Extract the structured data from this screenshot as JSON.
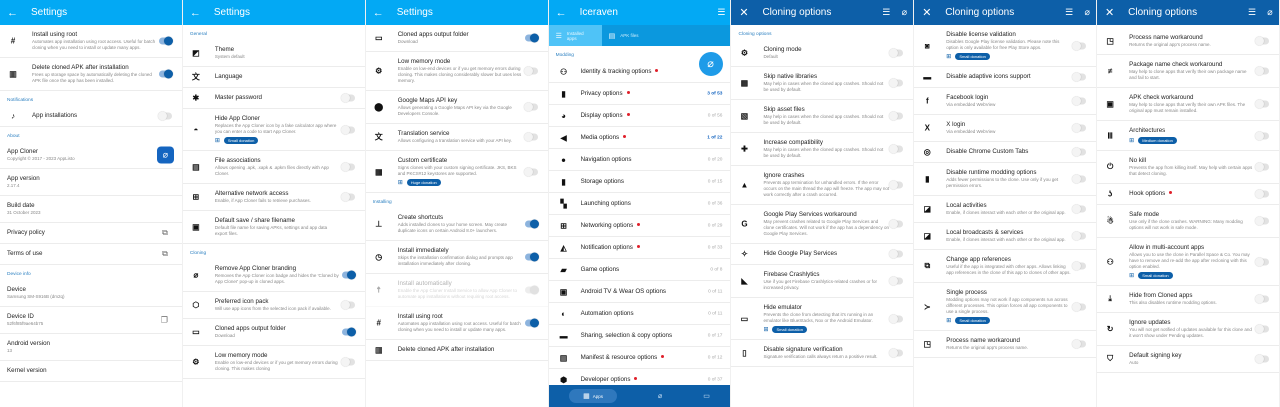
{
  "colors": {
    "header_light": "#03a9f4",
    "header_dark": "#0d5fa8",
    "accent": "#0d5fa8",
    "dot": "#e0202a"
  },
  "panels": [
    {
      "title": "Settings",
      "nav_icon": "back-arrow-icon",
      "theme": "light",
      "actions": [],
      "items": [
        {
          "icon": "hash-icon",
          "title": "Install using root",
          "subtitle": "Automates app installation using root access. Useful for batch cloning when you need to install or update many apps.",
          "toggle": "on"
        },
        {
          "icon": "trash-icon",
          "title": "Delete cloned APK after installation",
          "subtitle": "Frees up storage space by automatically deleting the cloned APK file once the app has been installed.",
          "toggle": "on"
        },
        {
          "section": "Notifications"
        },
        {
          "icon": "bell-icon",
          "title": "App installations",
          "toggle": "off",
          "plain": true
        },
        {
          "section": "About"
        },
        {
          "title": "App Cloner",
          "subtitle": "Copyright © 2017 - 2023 AppListo",
          "trailing": "app-logo"
        },
        {
          "title": "App version",
          "subtitle": "2.17.4"
        },
        {
          "title": "Build date",
          "subtitle": "31 October 2023"
        },
        {
          "title": "Privacy policy",
          "trailing": "open-external"
        },
        {
          "title": "Terms of use",
          "trailing": "open-external"
        },
        {
          "section": "Device info"
        },
        {
          "title": "Device",
          "subtitle": "Samsung SM-S916B (dm2q)"
        },
        {
          "title": "Device ID",
          "subtitle": "52f6f85f9ae64b75",
          "trailing": "copy"
        },
        {
          "title": "Android version",
          "subtitle": "13"
        },
        {
          "title": "Kernel version"
        }
      ]
    },
    {
      "title": "Settings",
      "nav_icon": "back-arrow-icon",
      "theme": "light",
      "actions": [],
      "items": [
        {
          "section": "General"
        },
        {
          "icon": "theme-icon",
          "title": "Theme",
          "subtitle": "System default"
        },
        {
          "icon": "translate-icon",
          "title": "Language"
        },
        {
          "icon": "asterisk-icon",
          "title": "Master password",
          "toggle": "off"
        },
        {
          "icon": "incognito-icon",
          "title": "Hide App Cloner",
          "subtitle": "Replaces the App Cloner icon by a fake calculator app where you can enter a code to start App Cloner.",
          "badge": "Small donation",
          "toggle": "off"
        },
        {
          "icon": "file-icon",
          "title": "File associations",
          "subtitle": "Allows opening .apk, .xapk & .apkm files directly with App Cloner.",
          "toggle": "off"
        },
        {
          "icon": "network-icon",
          "title": "Alternative network access",
          "subtitle": "Enable, if App Cloner fails to retrieve purchases.",
          "toggle": "off"
        },
        {
          "icon": "save-icon",
          "title": "Default save / share filename",
          "subtitle": "Default file name for saving APKs, settings and app data export files."
        },
        {
          "section": "Cloning"
        },
        {
          "icon": "branding-icon",
          "title": "Remove App Cloner branding",
          "subtitle": "Removes the App Cloner icon badge and hides the 'Cloned by App Cloner' pop-up in cloned apps.",
          "toggle": "on"
        },
        {
          "icon": "icon-pack-icon",
          "title": "Preferred icon pack",
          "subtitle": "Will use app icons from the selected icon pack if available.",
          "toggle": "off"
        },
        {
          "icon": "folder-icon",
          "title": "Cloned apps output folder",
          "subtitle": "Download",
          "toggle": "on"
        },
        {
          "icon": "memory-icon",
          "title": "Low memory mode",
          "subtitle": "Enable on low-end devices or if you get memory errors during cloning. This makes cloning",
          "toggle": "off"
        }
      ]
    },
    {
      "title": "Settings",
      "nav_icon": "back-arrow-icon",
      "theme": "light",
      "actions": [],
      "items": [
        {
          "icon": "folder-icon",
          "title": "Cloned apps output folder",
          "subtitle": "Download",
          "toggle": "on"
        },
        {
          "icon": "memory-icon",
          "title": "Low memory mode",
          "subtitle": "Enable on low-end devices or if you get memory errors during cloning. This makes cloning considerably slower but uses less memory.",
          "toggle": "off"
        },
        {
          "icon": "map-pin-icon",
          "title": "Google Maps API key",
          "subtitle": "Allows generating a Google Maps API key via the Google Developers Console.",
          "toggle": "off"
        },
        {
          "icon": "translate-icon",
          "title": "Translation service",
          "subtitle": "Allows configuring a translation service with your API key.",
          "toggle": "off"
        },
        {
          "icon": "certificate-icon",
          "title": "Custom certificate",
          "subtitle": "Signs clones with your custom signing certificate. JKS, BKS and PKCS#12 keystores are supported.",
          "badge": "Huge donation",
          "toggle": "off"
        },
        {
          "section": "Installing"
        },
        {
          "icon": "pin-icon",
          "title": "Create shortcuts",
          "subtitle": "Adds installed clones to your home screen. May create duplicate icons on certain Android 8.0+ launchers.",
          "toggle": "on"
        },
        {
          "icon": "timer-icon",
          "title": "Install immediately",
          "subtitle": "Skips the installation confirmation dialog and prompts app installation immediately after cloning.",
          "toggle": "on"
        },
        {
          "icon": "accessibility-icon",
          "title": "Install automatically",
          "subtitle": "Enable the App Cloner Install Service to allow App Cloner to automate app installations without requiring root access.",
          "toggle": "disabled",
          "disabled": true
        },
        {
          "icon": "hash-icon",
          "title": "Install using root",
          "subtitle": "Automates app installation using root access. Useful for batch cloning when you need to install or update many apps.",
          "toggle": "on"
        },
        {
          "icon": "trash-icon",
          "title": "Delete cloned APK after installation"
        }
      ]
    },
    {
      "title": "Iceraven",
      "nav_icon": "back-arrow-icon",
      "theme": "light",
      "actions": [
        "filter-search-icon"
      ],
      "tabs": [
        {
          "label": "Installed apps",
          "icon": "list-icon",
          "selected": true
        },
        {
          "label": "APK files",
          "icon": "file-icon",
          "selected": false
        }
      ],
      "fab_icon": "clone-icon",
      "bottom_nav": [
        {
          "label": "Apps",
          "icon": "grid-icon",
          "selected": true
        },
        {
          "label": "",
          "icon": "clone-icon"
        },
        {
          "label": "",
          "icon": "card-icon"
        }
      ],
      "items": [
        {
          "section": "Modding"
        },
        {
          "icon": "people-add-icon",
          "title": "Identity & tracking options",
          "dot": true,
          "option": true
        },
        {
          "icon": "lock-icon",
          "title": "Privacy options",
          "dot": true,
          "count": "3 of 53",
          "highlight": true,
          "option": true
        },
        {
          "icon": "palette-icon",
          "title": "Display options",
          "dot": true,
          "count": "0 of 56",
          "option": true
        },
        {
          "icon": "volume-off-icon",
          "title": "Media options",
          "dot": true,
          "count": "1 of 22",
          "highlight": true,
          "option": true
        },
        {
          "icon": "compass-icon",
          "title": "Navigation options",
          "count": "0 of 20",
          "option": true
        },
        {
          "icon": "sd-card-icon",
          "title": "Storage options",
          "count": "0 of 15",
          "option": true
        },
        {
          "icon": "apps-icon",
          "title": "Launching options",
          "count": "0 of 36",
          "option": true
        },
        {
          "icon": "network-icon",
          "title": "Networking options",
          "dot": true,
          "count": "0 of 29",
          "option": true
        },
        {
          "icon": "notifications-off-icon",
          "title": "Notification options",
          "dot": true,
          "count": "0 of 33",
          "option": true
        },
        {
          "icon": "game-folder-icon",
          "title": "Game options",
          "count": "0 of 8",
          "option": true
        },
        {
          "icon": "tv-icon",
          "title": "Android TV & Wear OS options",
          "count": "0 of 11",
          "option": true
        },
        {
          "icon": "brightness-icon",
          "title": "Automation options",
          "count": "0 of 11",
          "option": true
        },
        {
          "icon": "share-screen-icon",
          "title": "Sharing, selection & copy options",
          "count": "0 of 17",
          "option": true
        },
        {
          "icon": "manifest-icon",
          "title": "Manifest & resource options",
          "dot": true,
          "count": "0 of 12",
          "option": true
        },
        {
          "icon": "bug-icon",
          "title": "Developer options",
          "dot": true,
          "count": "0 of 37",
          "option": true
        }
      ]
    },
    {
      "title": "Cloning options",
      "nav_icon": "close-icon",
      "theme": "dark",
      "actions": [
        "filter-search-icon",
        "clone-icon"
      ],
      "items": [
        {
          "section": "Cloning options"
        },
        {
          "icon": "gear-icon",
          "title": "Cloning mode",
          "subtitle": "Default",
          "toggle": "off"
        },
        {
          "icon": "chip-icon",
          "title": "Skip native libraries",
          "subtitle": "May help in cases when the cloned app crashes. Should not be used by default.",
          "toggle": "off"
        },
        {
          "icon": "image-off-icon",
          "title": "Skip asset files",
          "subtitle": "May help in cases when the cloned app crashes. Should not be used by default.",
          "toggle": "off"
        },
        {
          "icon": "puzzle-icon",
          "title": "Increase compatibility",
          "subtitle": "May help in cases when the cloned app crashes. Should not be used by default.",
          "toggle": "off"
        },
        {
          "icon": "warning-icon",
          "title": "Ignore crashes",
          "subtitle": "Prevents app termination for unhandled errors. If the error occurs on the main thread the app will freeze. The app may not work correctly after a crash occurred.",
          "toggle": "off"
        },
        {
          "icon": "google-icon",
          "title": "Google Play Services workaround",
          "subtitle": "May prevent crashes related to Google Play Services and clone certificates. Will not work if the app has a dependency on Google Play Services.",
          "toggle": "off"
        },
        {
          "icon": "puzzle-outline-icon",
          "title": "Hide Google Play Services",
          "toggle": "off"
        },
        {
          "icon": "firebase-icon",
          "title": "Firebase Crashlytics",
          "subtitle": "Use if you get Firebase Crashlytics-related crashes or for increased privacy.",
          "toggle": "off"
        },
        {
          "icon": "devices-icon",
          "title": "Hide emulator",
          "subtitle": "Prevents the clone from detecting that it's running in an emulator like BlueStacks, Nox or the Android Emulator.",
          "badge": "Small donation",
          "toggle": "off"
        },
        {
          "icon": "file-verify-icon",
          "title": "Disable signature verification",
          "subtitle": "Signature verification calls always return a positive result.",
          "toggle": "off"
        }
      ]
    },
    {
      "title": "Cloning options",
      "nav_icon": "close-icon",
      "theme": "dark",
      "actions": [
        "filter-search-icon",
        "clone-icon"
      ],
      "items": [
        {
          "icon": "license-icon",
          "title": "Disable license validation",
          "subtitle": "Disables Google Play license validation. Please note this option is only available for free Play Store apps.",
          "badge": "Small donation",
          "toggle": "off"
        },
        {
          "icon": "adaptive-icon-icon",
          "title": "Disable adaptive icons support",
          "toggle": "off"
        },
        {
          "icon": "facebook-icon",
          "title": "Facebook login",
          "subtitle": "Via embedded WebView",
          "toggle": "off"
        },
        {
          "icon": "x-logo-icon",
          "title": "X login",
          "subtitle": "Via embedded WebView",
          "toggle": "off"
        },
        {
          "icon": "chrome-icon",
          "title": "Disable Chrome Custom Tabs",
          "toggle": "off"
        },
        {
          "icon": "file-lock-icon",
          "title": "Disable runtime modding options",
          "subtitle": "Adds fewer permissions to the clone. Use only if you get permission errors.",
          "toggle": "off"
        },
        {
          "icon": "link-off-icon",
          "title": "Local activities",
          "subtitle": "Enable, if clones interact with each other or the original app.",
          "toggle": "off"
        },
        {
          "icon": "link-off-icon",
          "title": "Local broadcasts & services",
          "subtitle": "Enable, if clones interact with each other or the original app.",
          "toggle": "off"
        },
        {
          "icon": "swap-icon",
          "title": "Change app references",
          "subtitle": "Useful if the app is integrated with other apps. Allows linking app references in the clone of this app to clones of other apps.",
          "toggle": "off"
        },
        {
          "icon": "merge-icon",
          "title": "Single process",
          "subtitle": "Modding options may not work if app components run across different processes. This option forces all app components to use a single process.",
          "badge": "Small donation",
          "toggle": "off"
        },
        {
          "icon": "window-gear-icon",
          "title": "Process name workaround",
          "subtitle": "Returns the original app's process name.",
          "toggle": "off"
        }
      ]
    },
    {
      "title": "Cloning options",
      "nav_icon": "close-icon",
      "theme": "dark",
      "actions": [
        "filter-search-icon",
        "clone-icon"
      ],
      "items": [
        {
          "icon": "window-gear-icon",
          "title": "Process name workaround",
          "subtitle": "Returns the original app's process name.",
          "toggle": "off"
        },
        {
          "icon": "not-equal-icon",
          "title": "Package name check workaround",
          "subtitle": "May help to clone apps that verify their own package name and fail to start.",
          "toggle": "off"
        },
        {
          "icon": "apk-icon",
          "title": "APK check workaround",
          "subtitle": "May help to clone apps that verify their own APK files. The original app must remain installed.",
          "toggle": "off"
        },
        {
          "icon": "architecture-icon",
          "title": "Architectures",
          "badge": "Medium donation",
          "toggle": "off"
        },
        {
          "icon": "power-icon",
          "title": "No kill",
          "subtitle": "Prevents the app from killing itself. May help with certain apps that detect cloning.",
          "toggle": "off"
        },
        {
          "icon": "hook-icon",
          "title": "Hook options",
          "dot": true,
          "toggle": "off"
        },
        {
          "icon": "safe-mode-icon",
          "title": "Safe mode",
          "subtitle": "Use only if the clone crashes. WARNING: Many modding options will not work in safe mode.",
          "toggle": "off"
        },
        {
          "icon": "accounts-icon",
          "title": "Allow in multi-account apps",
          "subtitle": "Allows you to use the clone in Parallel Space & Co. You may have to remove and re-add the app after recloning with this option enabled.",
          "badge": "Small donation",
          "toggle": "off"
        },
        {
          "icon": "download-icon",
          "title": "Hide from Cloned apps",
          "subtitle": "This also disables runtime modding options.",
          "toggle": "off"
        },
        {
          "icon": "update-icon",
          "title": "Ignore updates",
          "subtitle": "You will not get notified of updates available for this clone and it won't show under Pending updates.",
          "toggle": "off"
        },
        {
          "icon": "shield-key-icon",
          "title": "Default signing key",
          "subtitle": "Auto",
          "toggle": "off"
        }
      ]
    }
  ]
}
